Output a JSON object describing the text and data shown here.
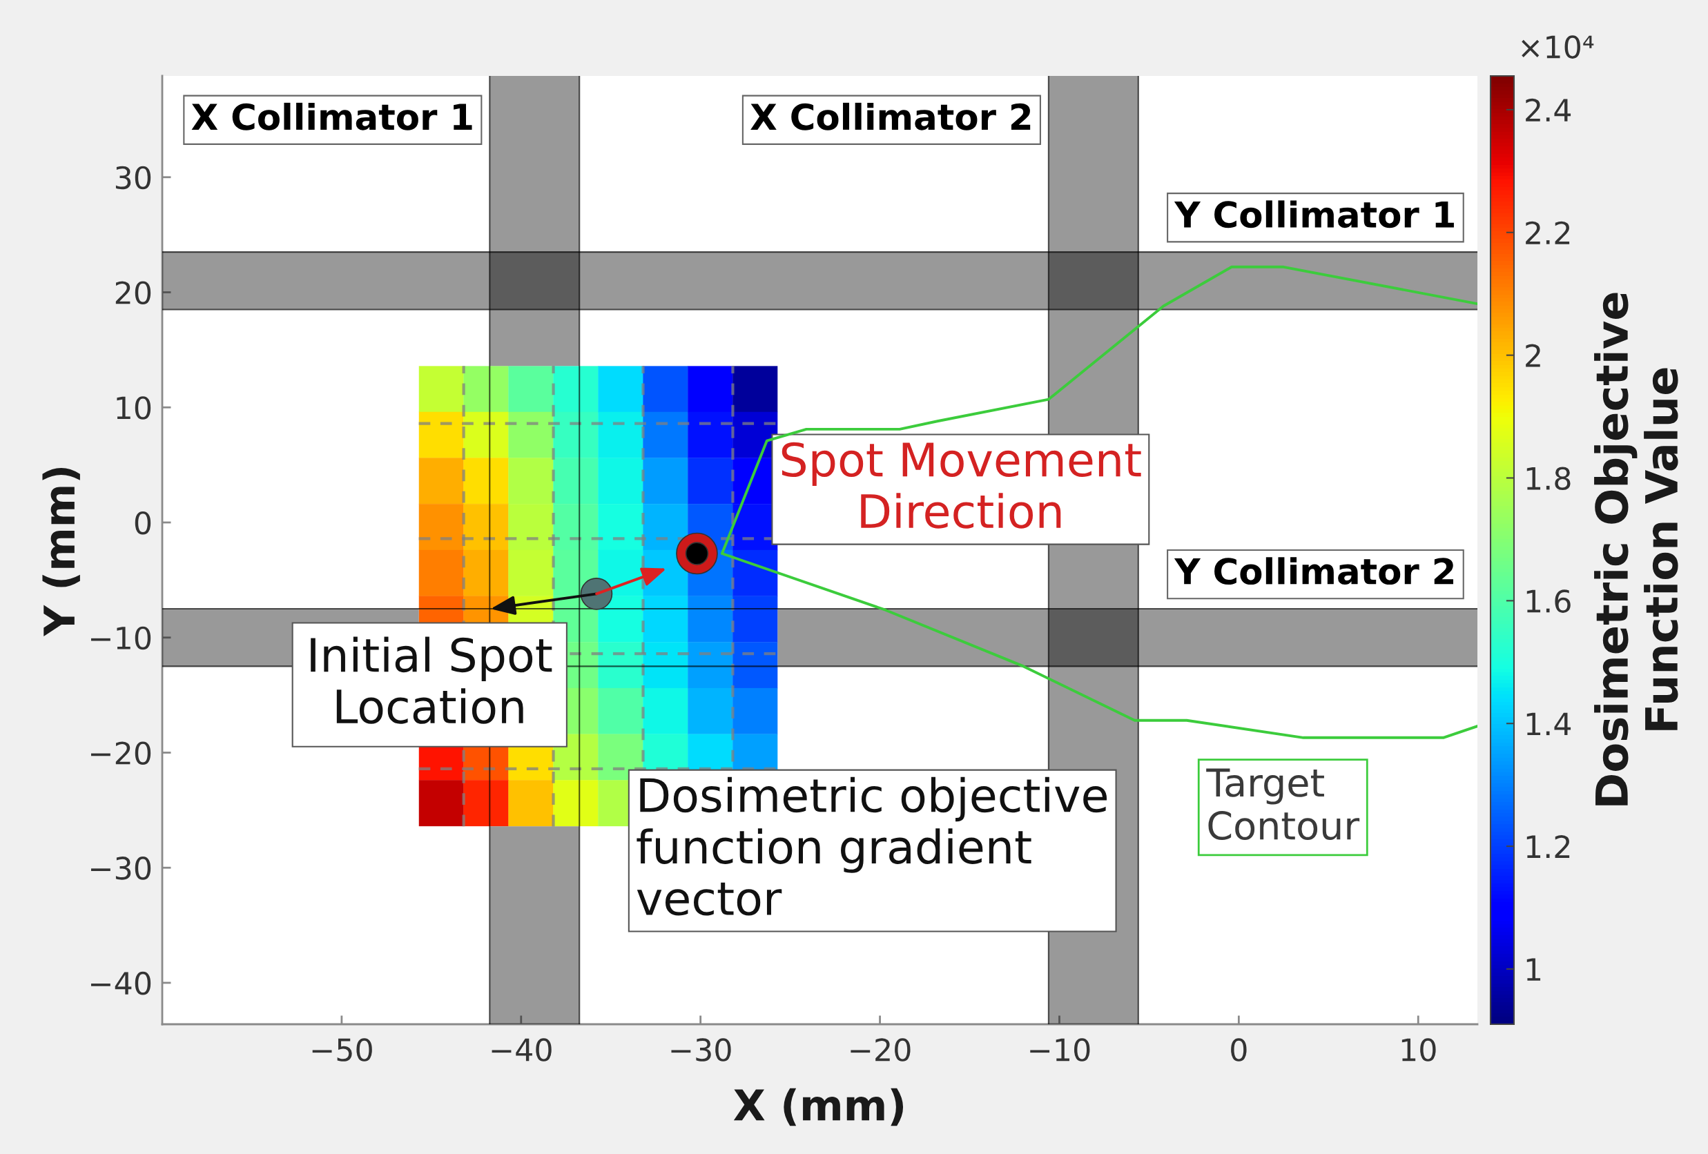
{
  "chart_data": [
    {
      "type": "line",
      "xlabel": "X (mm)",
      "ylabel": "Y (mm)",
      "xlim": [
        -60,
        13.3
      ],
      "ylim": [
        -43.6,
        38.8
      ],
      "xticks": [
        -50,
        -40,
        -30,
        -20,
        -10,
        0,
        10
      ],
      "yticks": [
        -40,
        -30,
        -20,
        -10,
        0,
        10,
        20,
        30
      ],
      "series": [
        {
          "name": "Target\nContour",
          "color": "#3ccc3c",
          "x": [
            13.3,
            2.5,
            -0.4,
            -4.2,
            -10.6,
            -16.8,
            -18.9,
            -24.1,
            -26.3,
            -28.8,
            -19.7,
            -12.0,
            -5.8,
            -2.9,
            3.6,
            11.4,
            13.3
          ],
          "values": [
            19.0,
            22.2,
            22.2,
            18.8,
            10.7,
            8.8,
            8.1,
            8.1,
            7.1,
            -2.7,
            -7.6,
            -12.5,
            -17.2,
            -17.2,
            -18.7,
            -18.7,
            -17.7
          ]
        },
        {
          "type": "bubble",
          "color": "#4f7474",
          "x": [
            -35.8
          ],
          "values": [
            -6.2
          ],
          "sizes": [
            0.58
          ]
        },
        {
          "type": "bubble",
          "color": "#cc1a1a",
          "x": [
            -30.2
          ],
          "values": [
            -2.7
          ],
          "sizes": [
            1
          ]
        },
        {
          "type": "bubble",
          "color": "#000000",
          "x": [
            -30.2
          ],
          "values": [
            -2.7
          ],
          "sizes": [
            0.29
          ]
        }
      ],
      "bands": [
        {
          "axis": "x",
          "from": -41.75,
          "to": -36.75,
          "label": "X Collimator 1",
          "color": "#999999"
        },
        {
          "axis": "x",
          "from": -10.6,
          "to": -5.6,
          "label": "X Collimator 2",
          "color": "#999999"
        },
        {
          "axis": "y",
          "from": 18.5,
          "to": 23.5,
          "label": "Y Collimator 1",
          "color": "#999999"
        },
        {
          "axis": "y",
          "from": -12.5,
          "to": -7.5,
          "label": "Y Collimator 2",
          "color": "#999999"
        }
      ],
      "ref_lines": [
        {
          "axis": "x",
          "value": -43.2,
          "color": "#808080",
          "line_style": "dashed"
        },
        {
          "axis": "x",
          "value": -38.2,
          "color": "#808080",
          "line_style": "dashed"
        },
        {
          "axis": "x",
          "value": -33.2,
          "color": "#808080",
          "line_style": "dashed"
        },
        {
          "axis": "x",
          "value": -28.2,
          "color": "#808080",
          "line_style": "dashed"
        },
        {
          "axis": "y",
          "value": 8.6,
          "color": "#808080",
          "line_style": "dashed"
        },
        {
          "axis": "y",
          "value": -1.4,
          "color": "#808080",
          "line_style": "dashed"
        },
        {
          "axis": "y",
          "value": -11.4,
          "color": "#808080",
          "line_style": "dashed"
        },
        {
          "axis": "y",
          "value": -21.4,
          "color": "#808080",
          "line_style": "dashed"
        }
      ],
      "annotations": [
        "Initial Spot\nLocation",
        "Spot Movement\nDirection",
        "Dosimetric objective\nfunction gradient\nvector"
      ]
    },
    {
      "type": "heatmap",
      "categories": [
        null,
        null,
        null,
        null,
        null,
        null,
        null,
        null
      ],
      "y_categories": [
        null,
        null,
        null,
        null,
        null,
        null,
        null,
        null,
        null,
        null
      ],
      "cells": [
        [
          1.82,
          1.73,
          1.62,
          1.52,
          1.44,
          1.23,
          1.09,
          0.95
        ],
        [
          1.95,
          1.86,
          1.72,
          1.55,
          1.47,
          1.29,
          1.13,
          1.03
        ],
        [
          2.03,
          1.95,
          1.78,
          1.58,
          1.48,
          1.34,
          1.18,
          1.08
        ],
        [
          2.08,
          2.0,
          1.8,
          1.61,
          1.49,
          1.38,
          1.24,
          1.13
        ],
        [
          2.11,
          2.03,
          1.82,
          1.62,
          1.48,
          1.41,
          1.28,
          1.17
        ],
        [
          2.15,
          2.07,
          1.85,
          1.63,
          1.49,
          1.43,
          1.31,
          1.2
        ],
        [
          null,
          null,
          null,
          1.66,
          1.53,
          1.45,
          1.35,
          1.24
        ],
        [
          null,
          null,
          null,
          1.71,
          1.6,
          1.48,
          1.38,
          1.3
        ],
        [
          2.28,
          2.18,
          1.95,
          1.79,
          1.68,
          1.51,
          1.44,
          1.35
        ],
        [
          2.36,
          2.25,
          2.0,
          1.87,
          1.78,
          null,
          null,
          null
        ]
      ],
      "clim": [
        0.91,
        2.455
      ],
      "cticks": [
        1,
        1.2,
        1.4,
        1.6,
        1.8,
        2,
        2.2,
        2.4
      ],
      "clabel": "Dosimetric Objective\nFunction Value",
      "annotations": [
        "×10⁴"
      ]
    }
  ]
}
